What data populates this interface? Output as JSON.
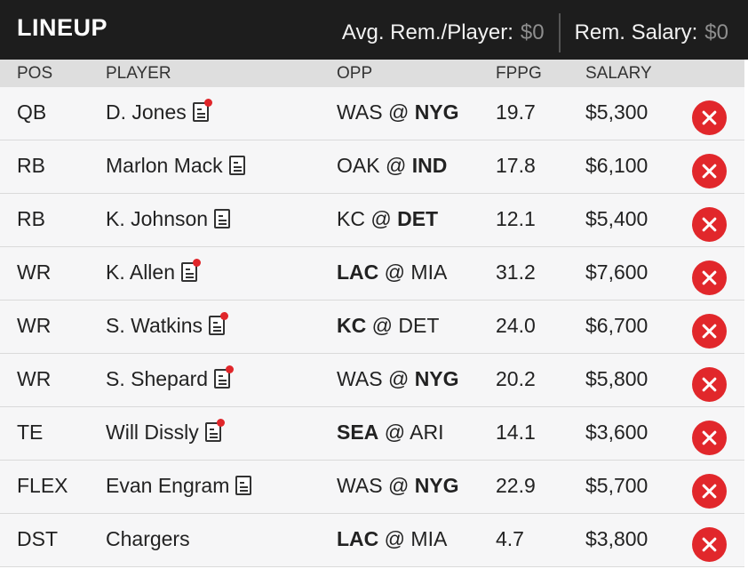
{
  "header": {
    "title": "LINEUP",
    "avg_label": "Avg. Rem./Player:",
    "avg_value": "$0",
    "rem_label": "Rem. Salary:",
    "rem_value": "$0"
  },
  "columns": {
    "pos": "POS",
    "player": "PLAYER",
    "opp": "OPP",
    "fppg": "FPPG",
    "salary": "SALARY"
  },
  "rows": [
    {
      "pos": "QB",
      "player": "D. Jones",
      "news": true,
      "news_alert": true,
      "away": "WAS",
      "at": "@",
      "home": "NYG",
      "bold": "home",
      "fppg": "19.7",
      "salary": "$5,300"
    },
    {
      "pos": "RB",
      "player": "Marlon Mack",
      "news": true,
      "news_alert": false,
      "away": "OAK",
      "at": "@",
      "home": "IND",
      "bold": "home",
      "fppg": "17.8",
      "salary": "$6,100"
    },
    {
      "pos": "RB",
      "player": "K. Johnson",
      "news": true,
      "news_alert": false,
      "away": "KC",
      "at": "@",
      "home": "DET",
      "bold": "home",
      "fppg": "12.1",
      "salary": "$5,400"
    },
    {
      "pos": "WR",
      "player": "K. Allen",
      "news": true,
      "news_alert": true,
      "away": "LAC",
      "at": "@",
      "home": "MIA",
      "bold": "away",
      "fppg": "31.2",
      "salary": "$7,600"
    },
    {
      "pos": "WR",
      "player": "S. Watkins",
      "news": true,
      "news_alert": true,
      "away": "KC",
      "at": "@",
      "home": "DET",
      "bold": "away",
      "fppg": "24.0",
      "salary": "$6,700"
    },
    {
      "pos": "WR",
      "player": "S. Shepard",
      "news": true,
      "news_alert": true,
      "away": "WAS",
      "at": "@",
      "home": "NYG",
      "bold": "home",
      "fppg": "20.2",
      "salary": "$5,800"
    },
    {
      "pos": "TE",
      "player": "Will Dissly",
      "news": true,
      "news_alert": true,
      "away": "SEA",
      "at": "@",
      "home": "ARI",
      "bold": "away",
      "fppg": "14.1",
      "salary": "$3,600"
    },
    {
      "pos": "FLEX",
      "player": "Evan Engram",
      "news": true,
      "news_alert": false,
      "away": "WAS",
      "at": "@",
      "home": "NYG",
      "bold": "home",
      "fppg": "22.9",
      "salary": "$5,700"
    },
    {
      "pos": "DST",
      "player": "Chargers",
      "news": false,
      "news_alert": false,
      "away": "LAC",
      "at": "@",
      "home": "MIA",
      "bold": "away",
      "fppg": "4.7",
      "salary": "$3,800"
    }
  ],
  "icons": {
    "news": "player-news-icon",
    "remove": "remove-x-icon"
  },
  "colors": {
    "header_bg": "#1d1d1d",
    "remove_red": "#e1272b",
    "alert_dot": "#e0262a",
    "row_bg": "#f6f6f7"
  }
}
